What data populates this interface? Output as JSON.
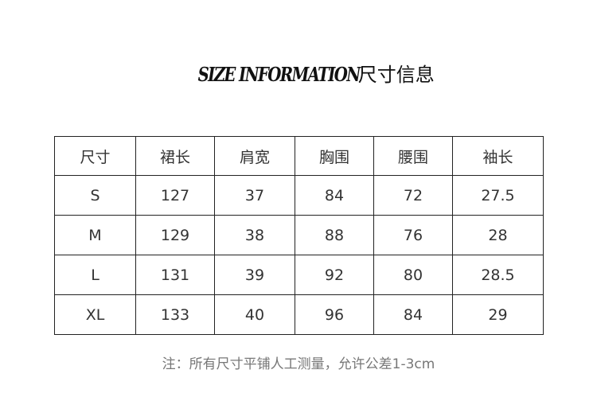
{
  "title": {
    "en": "SIZE INFORMATION",
    "cn": "尺寸信息"
  },
  "table": {
    "headers": [
      "尺寸",
      "裙长",
      "肩宽",
      "胸围",
      "腰围",
      "袖长"
    ],
    "rows": [
      [
        "S",
        "127",
        "37",
        "84",
        "72",
        "27.5"
      ],
      [
        "M",
        "129",
        "38",
        "88",
        "76",
        "28"
      ],
      [
        "L",
        "131",
        "39",
        "92",
        "80",
        "28.5"
      ],
      [
        "XL",
        "133",
        "40",
        "96",
        "84",
        "29"
      ]
    ]
  },
  "note": "注：所有尺寸平铺人工测量，允许公差1-3cm"
}
